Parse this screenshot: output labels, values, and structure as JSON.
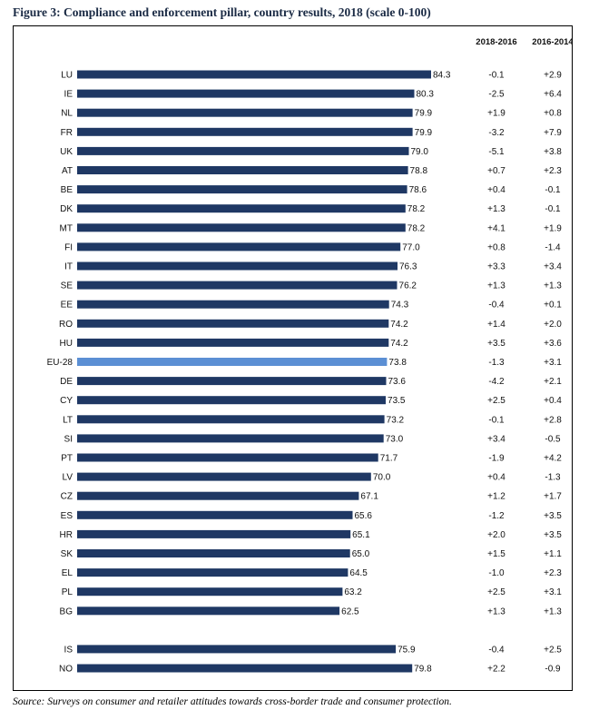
{
  "title": "Figure 3: Compliance and enforcement pillar, country results, 2018 (scale 0-100)",
  "source": "Source: Surveys on consumer and retailer attitudes towards cross-border trade and consumer protection.",
  "colors": {
    "bar": "#1f3864",
    "highlight": "#5b8fd4"
  },
  "chart_data": {
    "type": "bar",
    "orientation": "horizontal",
    "grid": false,
    "xlim": [
      0,
      100
    ],
    "column_headers": [
      "2018-2016",
      "2016-2014"
    ],
    "groups": [
      {
        "rows": [
          {
            "label": "LU",
            "value": 84.3,
            "value_label": "84.3",
            "change_2018_2016": "-0.1",
            "change_2016_2014": "+2.9"
          },
          {
            "label": "IE",
            "value": 80.3,
            "value_label": "80.3",
            "change_2018_2016": "-2.5",
            "change_2016_2014": "+6.4"
          },
          {
            "label": "NL",
            "value": 79.9,
            "value_label": "79.9",
            "change_2018_2016": "+1.9",
            "change_2016_2014": "+0.8"
          },
          {
            "label": "FR",
            "value": 79.9,
            "value_label": "79.9",
            "change_2018_2016": "-3.2",
            "change_2016_2014": "+7.9"
          },
          {
            "label": "UK",
            "value": 79.0,
            "value_label": "79.0",
            "change_2018_2016": "-5.1",
            "change_2016_2014": "+3.8"
          },
          {
            "label": "AT",
            "value": 78.8,
            "value_label": "78.8",
            "change_2018_2016": "+0.7",
            "change_2016_2014": "+2.3"
          },
          {
            "label": "BE",
            "value": 78.6,
            "value_label": "78.6",
            "change_2018_2016": "+0.4",
            "change_2016_2014": "-0.1"
          },
          {
            "label": "DK",
            "value": 78.2,
            "value_label": "78.2",
            "change_2018_2016": "+1.3",
            "change_2016_2014": "-0.1"
          },
          {
            "label": "MT",
            "value": 78.2,
            "value_label": "78.2",
            "change_2018_2016": "+4.1",
            "change_2016_2014": "+1.9"
          },
          {
            "label": "FI",
            "value": 77.0,
            "value_label": "77.0",
            "change_2018_2016": "+0.8",
            "change_2016_2014": "-1.4"
          },
          {
            "label": "IT",
            "value": 76.3,
            "value_label": "76.3",
            "change_2018_2016": "+3.3",
            "change_2016_2014": "+3.4"
          },
          {
            "label": "SE",
            "value": 76.2,
            "value_label": "76.2",
            "change_2018_2016": "+1.3",
            "change_2016_2014": "+1.3"
          },
          {
            "label": "EE",
            "value": 74.3,
            "value_label": "74.3",
            "change_2018_2016": "-0.4",
            "change_2016_2014": "+0.1"
          },
          {
            "label": "RO",
            "value": 74.2,
            "value_label": "74.2",
            "change_2018_2016": "+1.4",
            "change_2016_2014": "+2.0"
          },
          {
            "label": "HU",
            "value": 74.2,
            "value_label": "74.2",
            "change_2018_2016": "+3.5",
            "change_2016_2014": "+3.6"
          },
          {
            "label": "EU-28",
            "value": 73.8,
            "value_label": "73.8",
            "change_2018_2016": "-1.3",
            "change_2016_2014": "+3.1",
            "highlight": true
          },
          {
            "label": "DE",
            "value": 73.6,
            "value_label": "73.6",
            "change_2018_2016": "-4.2",
            "change_2016_2014": "+2.1"
          },
          {
            "label": "CY",
            "value": 73.5,
            "value_label": "73.5",
            "change_2018_2016": "+2.5",
            "change_2016_2014": "+0.4"
          },
          {
            "label": "LT",
            "value": 73.2,
            "value_label": "73.2",
            "change_2018_2016": "-0.1",
            "change_2016_2014": "+2.8"
          },
          {
            "label": "SI",
            "value": 73.0,
            "value_label": "73.0",
            "change_2018_2016": "+3.4",
            "change_2016_2014": "-0.5"
          },
          {
            "label": "PT",
            "value": 71.7,
            "value_label": "71.7",
            "change_2018_2016": "-1.9",
            "change_2016_2014": "+4.2"
          },
          {
            "label": "LV",
            "value": 70.0,
            "value_label": "70.0",
            "change_2018_2016": "+0.4",
            "change_2016_2014": "-1.3"
          },
          {
            "label": "CZ",
            "value": 67.1,
            "value_label": "67.1",
            "change_2018_2016": "+1.2",
            "change_2016_2014": "+1.7"
          },
          {
            "label": "ES",
            "value": 65.6,
            "value_label": "65.6",
            "change_2018_2016": "-1.2",
            "change_2016_2014": "+3.5"
          },
          {
            "label": "HR",
            "value": 65.1,
            "value_label": "65.1",
            "change_2018_2016": "+2.0",
            "change_2016_2014": "+3.5"
          },
          {
            "label": "SK",
            "value": 65.0,
            "value_label": "65.0",
            "change_2018_2016": "+1.5",
            "change_2016_2014": "+1.1"
          },
          {
            "label": "EL",
            "value": 64.5,
            "value_label": "64.5",
            "change_2018_2016": "-1.0",
            "change_2016_2014": "+2.3"
          },
          {
            "label": "PL",
            "value": 63.2,
            "value_label": "63.2",
            "change_2018_2016": "+2.5",
            "change_2016_2014": "+3.1"
          },
          {
            "label": "BG",
            "value": 62.5,
            "value_label": "62.5",
            "change_2018_2016": "+1.3",
            "change_2016_2014": "+1.3"
          }
        ]
      },
      {
        "rows": [
          {
            "label": "IS",
            "value": 75.9,
            "value_label": "75.9",
            "change_2018_2016": "-0.4",
            "change_2016_2014": "+2.5"
          },
          {
            "label": "NO",
            "value": 79.8,
            "value_label": "79.8",
            "change_2018_2016": "+2.2",
            "change_2016_2014": "-0.9"
          }
        ]
      }
    ]
  }
}
